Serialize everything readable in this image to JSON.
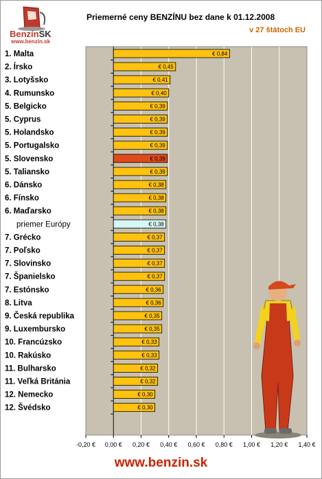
{
  "header": {
    "title": "Priemerné ceny BENZÍNU bez dane k 01.12.2008",
    "subtitle": "v 27 štátoch EU",
    "logo_name": "Benzín",
    "logo_suffix": "SK",
    "logo_url": "www.benzin.sk"
  },
  "footer": {
    "url": "www.benzin.sk"
  },
  "colors": {
    "bar": "#ffc20e",
    "highlight": "#e04a1a",
    "average": "#d6f7f3",
    "plot_bg": "#c8c0b0",
    "grid": "#ffffff"
  },
  "chart_data": {
    "type": "bar",
    "orientation": "horizontal",
    "title": "Priemerné ceny BENZÍNU bez dane k 01.12.2008",
    "subtitle": "v 27 štátoch EU",
    "currency": "€",
    "xlim": [
      -0.2,
      1.4
    ],
    "xticks": [
      "-0,20 €",
      "0,00 €",
      "0,20 €",
      "0,40 €",
      "0,60 €",
      "0,80 €",
      "1,00 €",
      "1,20 €",
      "1,40 €"
    ],
    "grid": true,
    "highlight": "5. Slovensko",
    "average_label": "priemer Európy",
    "categories": [
      "1. Malta",
      "2. Írsko",
      "3. Lotyšsko",
      "4. Rumunsko",
      "5. Belgicko",
      "5. Cyprus",
      "5. Holandsko",
      "5. Portugalsko",
      "5. Slovensko",
      "5. Taliansko",
      "6. Dánsko",
      "6. Fínsko",
      "6. Maďarsko",
      "priemer Európy",
      "7. Grécko",
      "7. Poľsko",
      "7. Slovinsko",
      "7. Španielsko",
      "7. Estónsko",
      "8. Litva",
      "9. Česká republika",
      "9. Luxembursko",
      "10. Francúzsko",
      "10. Rakúsko",
      "11. Bulharsko",
      "11. Veľká Británia",
      "12. Nemecko",
      "12. Švédsko"
    ],
    "values": [
      0.84,
      0.45,
      0.41,
      0.4,
      0.39,
      0.39,
      0.39,
      0.39,
      0.39,
      0.39,
      0.38,
      0.38,
      0.38,
      0.38,
      0.37,
      0.37,
      0.37,
      0.37,
      0.36,
      0.36,
      0.35,
      0.35,
      0.33,
      0.33,
      0.32,
      0.32,
      0.3,
      0.3
    ],
    "value_labels": [
      "€ 0,84",
      "€ 0,45",
      "€ 0,41",
      "€ 0,40",
      "€ 0,39",
      "€ 0,39",
      "€ 0,39",
      "€ 0,39",
      "€ 0,39",
      "€ 0,39",
      "€ 0,38",
      "€ 0,38",
      "€ 0,38",
      "€ 0,38",
      "€ 0,37",
      "€ 0,37",
      "€ 0,37",
      "€ 0,37",
      "€ 0,36",
      "€ 0,36",
      "€ 0,35",
      "€ 0,35",
      "€ 0,33",
      "€ 0,33",
      "€ 0,32",
      "€ 0,32",
      "€ 0,30",
      "€ 0,30"
    ]
  }
}
